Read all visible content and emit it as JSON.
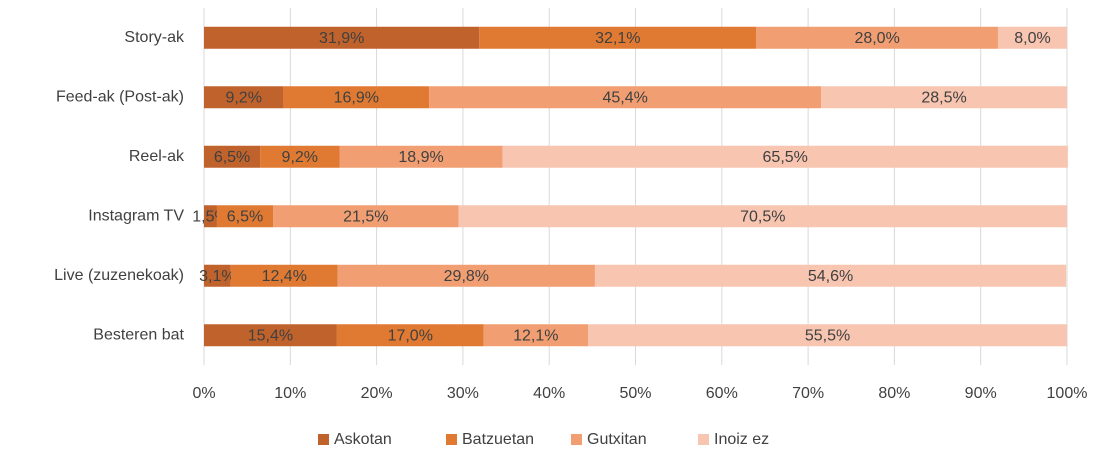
{
  "chart_data": {
    "type": "bar",
    "orientation": "horizontal",
    "stacked": true,
    "categories": [
      "Story-ak",
      "Feed-ak (Post-ak)",
      "Reel-ak",
      "Instagram TV",
      "Live (zuzenekoak)",
      "Besteren bat"
    ],
    "series": [
      {
        "name": "Askotan",
        "color": "#c0622b",
        "values": [
          31.9,
          9.2,
          6.5,
          1.5,
          3.1,
          15.4
        ],
        "value_labels": [
          "31,9%",
          "9,2%",
          "6,5%",
          "1,5%",
          "3,1%",
          "15,4%"
        ]
      },
      {
        "name": "Batzuetan",
        "color": "#e07a32",
        "values": [
          32.1,
          16.9,
          9.2,
          6.5,
          12.4,
          17.0
        ],
        "value_labels": [
          "32,1%",
          "16,9%",
          "9,2%",
          "6,5%",
          "12,4%",
          "17,0%"
        ]
      },
      {
        "name": "Gutxitan",
        "color": "#f19f72",
        "values": [
          28.0,
          45.4,
          18.9,
          21.5,
          29.8,
          12.1
        ],
        "value_labels": [
          "28,0%",
          "45,4%",
          "18,9%",
          "21,5%",
          "29,8%",
          "12,1%"
        ]
      },
      {
        "name": "Inoiz ez",
        "color": "#f7c5b0",
        "values": [
          8.0,
          28.5,
          65.5,
          70.5,
          54.6,
          55.5
        ],
        "value_labels": [
          "8,0%",
          "28,5%",
          "65,5%",
          "70,5%",
          "54,6%",
          "55,5%"
        ]
      }
    ],
    "xlim": [
      0,
      100
    ],
    "xticks": [
      {
        "value": 0,
        "label": "0%"
      },
      {
        "value": 10,
        "label": "10%"
      },
      {
        "value": 20,
        "label": "20%"
      },
      {
        "value": 30,
        "label": "30%"
      },
      {
        "value": 40,
        "label": "40%"
      },
      {
        "value": 50,
        "label": "50%"
      },
      {
        "value": 60,
        "label": "60%"
      },
      {
        "value": 70,
        "label": "70%"
      },
      {
        "value": 80,
        "label": "80%"
      },
      {
        "value": 90,
        "label": "90%"
      },
      {
        "value": 100,
        "label": "100%"
      }
    ],
    "grid": true,
    "legend": "bottom"
  }
}
